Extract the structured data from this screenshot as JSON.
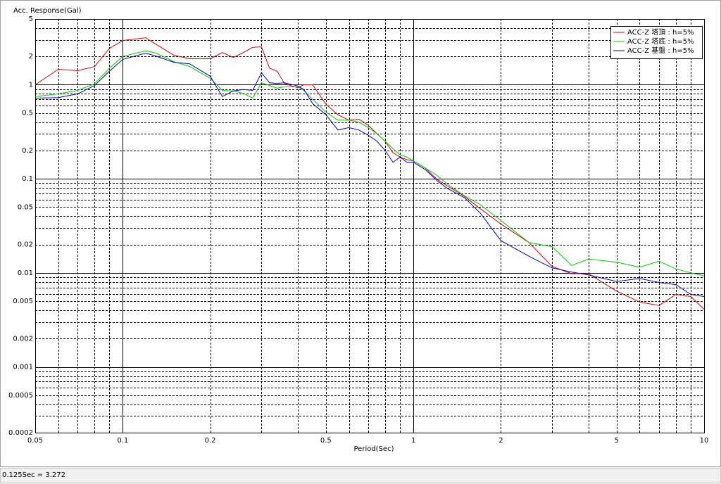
{
  "chart_data": {
    "type": "line",
    "y_label": "Acc. Response(Gal)",
    "x_label": "Period(Sec)",
    "xscale": "log",
    "yscale": "log",
    "grid": true,
    "legend": "upper right",
    "xlim": [
      0.05,
      10
    ],
    "ylim": [
      0.0002,
      5
    ],
    "xticks": [
      0.05,
      0.1,
      0.2,
      0.5,
      1,
      2,
      5,
      10
    ],
    "x_minor_ticks": [
      0.06,
      0.07,
      0.08,
      0.09,
      0.3,
      0.4,
      0.6,
      0.7,
      0.8,
      0.9,
      3,
      4,
      6,
      7,
      8,
      9
    ],
    "yticks": [
      5,
      2,
      1,
      0.5,
      0.2,
      0.1,
      0.05,
      0.02,
      0.01,
      0.005,
      0.002,
      0.001,
      0.0005,
      0.0002
    ],
    "y_minor_ticks": [
      4,
      3,
      0.9,
      0.8,
      0.7,
      0.6,
      0.4,
      0.3,
      0.09,
      0.08,
      0.07,
      0.06,
      0.04,
      0.03,
      0.009,
      0.008,
      0.007,
      0.006,
      0.004,
      0.003,
      0.0009,
      0.0008,
      0.0007,
      0.0006,
      0.0004,
      0.0003
    ],
    "x": [
      0.05,
      0.06,
      0.07,
      0.08,
      0.09,
      0.1,
      0.12,
      0.13,
      0.15,
      0.17,
      0.2,
      0.22,
      0.24,
      0.26,
      0.28,
      0.3,
      0.32,
      0.34,
      0.36,
      0.4,
      0.42,
      0.45,
      0.5,
      0.55,
      0.6,
      0.65,
      0.7,
      0.75,
      0.8,
      0.85,
      0.9,
      0.95,
      1.0,
      1.1,
      1.2,
      1.3,
      1.5,
      1.7,
      2.0,
      2.5,
      3.0,
      3.5,
      4,
      5,
      6,
      7,
      8,
      9,
      10
    ],
    "series": [
      {
        "name": "ACC-Z 塔頂 : h=5%",
        "color": "#e00000",
        "values": [
          1.0,
          1.46,
          1.41,
          1.56,
          2.44,
          2.95,
          3.16,
          2.7,
          2.06,
          1.89,
          1.89,
          2.2,
          1.95,
          2.2,
          2.5,
          2.53,
          1.5,
          1.39,
          1.03,
          0.93,
          1.0,
          1.0,
          0.62,
          0.48,
          0.42,
          0.43,
          0.37,
          0.3,
          0.25,
          0.19,
          0.17,
          0.16,
          0.155,
          0.13,
          0.1,
          0.085,
          0.065,
          0.048,
          0.033,
          0.021,
          0.0117,
          0.0098,
          0.0098,
          0.0064,
          0.0049,
          0.0045,
          0.0059,
          0.0056,
          0.0041
        ]
      },
      {
        "name": "ACC-Z 塔底 : h=5%",
        "color": "#00d000",
        "values": [
          0.75,
          0.8,
          0.87,
          1.02,
          1.5,
          2.0,
          2.3,
          2.17,
          1.76,
          1.56,
          1.17,
          0.87,
          0.86,
          0.81,
          0.72,
          1.05,
          0.98,
          0.92,
          0.95,
          0.95,
          0.87,
          0.7,
          0.51,
          0.42,
          0.42,
          0.4,
          0.35,
          0.3,
          0.25,
          0.21,
          0.18,
          0.17,
          0.155,
          0.13,
          0.11,
          0.089,
          0.066,
          0.053,
          0.036,
          0.021,
          0.019,
          0.012,
          0.014,
          0.013,
          0.0115,
          0.0133,
          0.011,
          0.01,
          0.0093
        ]
      },
      {
        "name": "ACC-Z 基盤 : h=5%",
        "color": "#0000e0",
        "values": [
          0.72,
          0.73,
          0.8,
          0.98,
          1.39,
          1.86,
          2.17,
          2.02,
          1.73,
          1.67,
          1.23,
          0.75,
          0.86,
          0.89,
          0.87,
          1.34,
          1.05,
          1.03,
          1.05,
          0.97,
          0.89,
          0.63,
          0.48,
          0.33,
          0.35,
          0.33,
          0.29,
          0.25,
          0.2,
          0.15,
          0.17,
          0.15,
          0.15,
          0.125,
          0.097,
          0.08,
          0.063,
          0.043,
          0.022,
          0.015,
          0.0113,
          0.0102,
          0.0095,
          0.0081,
          0.0087,
          0.0079,
          0.0075,
          0.0059,
          0.0056
        ]
      }
    ]
  },
  "status_bar": "0.125Sec = 3.272"
}
